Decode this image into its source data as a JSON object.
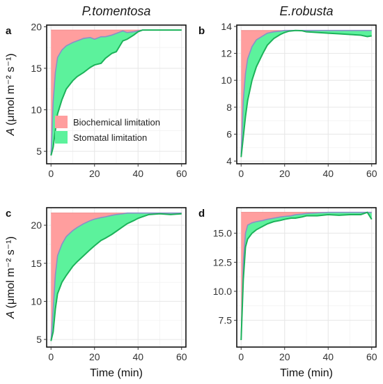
{
  "column_titles": [
    "P.tomentosa",
    "E.robusta"
  ],
  "colors": {
    "biochemical_fill": "#FF9E9E",
    "stomatal_fill": "#5CF29C",
    "upper_line": "#8A8FC8",
    "lower_line": "#1CB25A",
    "grid": "#E6E6E6",
    "frame": "#111111"
  },
  "legend": [
    {
      "label": "Biochemical limitation",
      "color": "#FF9E9E"
    },
    {
      "label": "Stomatal limitation",
      "color": "#5CF29C"
    }
  ],
  "ylabel": {
    "prefix": "A",
    "units": "(μmol m⁻² s⁻¹)"
  },
  "xlabel": "Time (min)",
  "chart_data": [
    {
      "type": "area",
      "panel_label": "a",
      "column_title": "P.tomentosa",
      "xlim": [
        -2,
        62
      ],
      "ylim": [
        3.5,
        20.2
      ],
      "xticks": [
        "0",
        "20",
        "40",
        "60"
      ],
      "xtick_values": [
        0,
        20,
        40,
        60
      ],
      "yticks": [
        "5",
        "10",
        "15",
        "20"
      ],
      "ytick_values": [
        5,
        10,
        15,
        20
      ],
      "amax": 19.6,
      "x": [
        0,
        1,
        2,
        3,
        5,
        7,
        10,
        12,
        15,
        18,
        20,
        23,
        25,
        28,
        30,
        33,
        35,
        38,
        40,
        42,
        45,
        50,
        55,
        60
      ],
      "upper": [
        4.5,
        11.0,
        14.5,
        16.3,
        17.2,
        17.7,
        18.1,
        18.3,
        18.6,
        18.7,
        18.5,
        18.8,
        18.8,
        19.0,
        19.2,
        19.5,
        19.3,
        19.4,
        19.5,
        19.6,
        19.6,
        19.6,
        19.6,
        19.6
      ],
      "lower": [
        4.5,
        5.5,
        7.5,
        9.5,
        11.2,
        12.5,
        13.5,
        14.0,
        14.5,
        15.1,
        15.4,
        15.6,
        16.2,
        16.8,
        17.0,
        18.3,
        18.5,
        19.0,
        19.4,
        19.6,
        19.6,
        19.6,
        19.6,
        19.6
      ],
      "show_legend": true,
      "show_ylabel": true,
      "show_xlabel": false
    },
    {
      "type": "area",
      "panel_label": "b",
      "column_title": "E.robusta",
      "xlim": [
        -2,
        62
      ],
      "ylim": [
        3.8,
        14.1
      ],
      "xticks": [
        "0",
        "20",
        "40",
        "60"
      ],
      "xtick_values": [
        0,
        20,
        40,
        60
      ],
      "yticks": [
        "4",
        "6",
        "8",
        "10",
        "12",
        "14"
      ],
      "ytick_values": [
        4,
        6,
        8,
        10,
        12,
        14
      ],
      "amax": 13.7,
      "x": [
        0,
        1,
        2,
        3,
        5,
        7,
        10,
        12,
        15,
        18,
        20,
        22,
        25,
        28,
        30,
        35,
        40,
        45,
        50,
        55,
        58,
        60
      ],
      "upper": [
        4.5,
        8.5,
        10.5,
        11.6,
        12.5,
        13.0,
        13.3,
        13.5,
        13.6,
        13.65,
        13.7,
        13.7,
        13.7,
        13.7,
        13.7,
        13.7,
        13.7,
        13.7,
        13.7,
        13.7,
        13.7,
        13.7
      ],
      "lower": [
        4.3,
        5.8,
        7.3,
        8.5,
        10.0,
        11.0,
        12.0,
        12.6,
        13.1,
        13.4,
        13.55,
        13.65,
        13.7,
        13.68,
        13.6,
        13.55,
        13.5,
        13.45,
        13.4,
        13.35,
        13.25,
        13.3
      ],
      "show_legend": false,
      "show_ylabel": false,
      "show_xlabel": false
    },
    {
      "type": "area",
      "panel_label": "c",
      "column_title": "",
      "xlim": [
        -2,
        62
      ],
      "ylim": [
        4.0,
        22.3
      ],
      "xticks": [
        "0",
        "20",
        "40",
        "60"
      ],
      "xtick_values": [
        0,
        20,
        40,
        60
      ],
      "yticks": [
        "5",
        "10",
        "15",
        "20"
      ],
      "ytick_values": [
        5,
        10,
        15,
        20
      ],
      "amax": 21.6,
      "x": [
        0,
        1,
        2,
        3,
        5,
        7,
        10,
        12,
        15,
        18,
        20,
        23,
        25,
        28,
        30,
        33,
        35,
        38,
        40,
        42,
        45,
        50,
        55,
        60
      ],
      "upper": [
        4.8,
        9.0,
        13.5,
        16.0,
        17.5,
        18.5,
        19.3,
        19.7,
        20.2,
        20.6,
        20.8,
        21.0,
        21.1,
        21.3,
        21.4,
        21.5,
        21.6,
        21.6,
        21.6,
        21.6,
        21.6,
        21.6,
        21.6,
        21.6
      ],
      "lower": [
        4.8,
        6.0,
        9.0,
        11.0,
        12.5,
        13.4,
        14.6,
        15.2,
        16.0,
        16.8,
        17.3,
        18.0,
        18.3,
        18.8,
        19.2,
        19.8,
        20.2,
        20.6,
        20.9,
        21.1,
        21.4,
        21.5,
        21.4,
        21.5
      ],
      "show_legend": false,
      "show_ylabel": true,
      "show_xlabel": true
    },
    {
      "type": "area",
      "panel_label": "d",
      "column_title": "",
      "xlim": [
        -2,
        62
      ],
      "ylim": [
        5.2,
        17.2
      ],
      "xticks": [
        "0",
        "20",
        "40",
        "60"
      ],
      "xtick_values": [
        0,
        20,
        40,
        60
      ],
      "yticks": [
        "7.5",
        "10.0",
        "12.5",
        "15.0"
      ],
      "ytick_values": [
        7.5,
        10.0,
        12.5,
        15.0
      ],
      "amax": 16.8,
      "x": [
        0,
        1,
        2,
        3,
        5,
        7,
        10,
        12,
        15,
        18,
        20,
        23,
        25,
        28,
        30,
        35,
        40,
        45,
        50,
        55,
        58,
        60
      ],
      "upper": [
        5.8,
        12.5,
        15.0,
        15.7,
        15.9,
        16.0,
        16.1,
        16.2,
        16.3,
        16.4,
        16.45,
        16.5,
        16.6,
        16.65,
        16.7,
        16.75,
        16.8,
        16.8,
        16.8,
        16.8,
        16.8,
        16.8
      ],
      "lower": [
        5.8,
        11.0,
        13.8,
        14.5,
        15.0,
        15.3,
        15.6,
        15.8,
        16.0,
        16.1,
        16.2,
        16.3,
        16.3,
        16.4,
        16.5,
        16.5,
        16.6,
        16.55,
        16.6,
        16.6,
        16.8,
        16.2
      ],
      "show_legend": false,
      "show_ylabel": false,
      "show_xlabel": true
    }
  ]
}
